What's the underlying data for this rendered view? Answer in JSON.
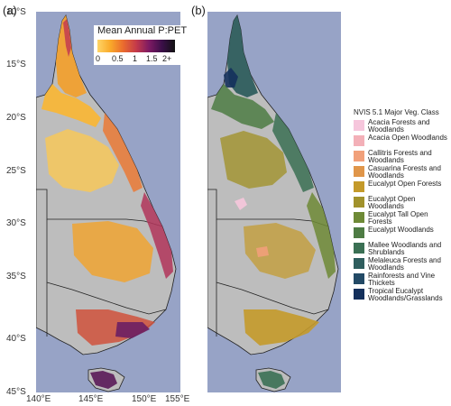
{
  "panel_a": {
    "label": "(a)",
    "legend_title": "Mean Annual P:PET",
    "ticks": [
      "0",
      "0.5",
      "1",
      "1.5",
      "2+"
    ]
  },
  "panel_b": {
    "label": "(b)",
    "legend_title": "NVIS 5.1 Major Veg. Class",
    "classes": [
      {
        "label": "Acacia Forests and Woodlands",
        "color": "#f6c6dc"
      },
      {
        "label": "Acacia Open Woodlands",
        "color": "#f3b0b8"
      },
      {
        "label": "Callitris Forests and Woodlands",
        "color": "#f1a07a"
      },
      {
        "label": "Casuarina Forests and Woodlands",
        "color": "#e0964a"
      },
      {
        "label": "Eucalypt Open Forests",
        "color": "#c49a2a"
      },
      {
        "label": "Eucalypt Open Woodlands",
        "color": "#a1922c"
      },
      {
        "label": "Eucalypt Tall Open Forests",
        "color": "#6e8a36"
      },
      {
        "label": "Eucalypt Woodlands",
        "color": "#4e7c44"
      },
      {
        "label": "Mallee Woodlands and Shrublands",
        "color": "#3b7054"
      },
      {
        "label": "Melaleuca Forests and Woodlands",
        "color": "#2f5e5e"
      },
      {
        "label": "Rainforests and Vine Thickets",
        "color": "#234a66"
      },
      {
        "label": "Tropical Eucalypt Woodlands/Grasslands",
        "color": "#14305c"
      }
    ]
  },
  "axes": {
    "lat_labels": [
      "10°S",
      "15°S",
      "20°S",
      "25°S",
      "30°S",
      "35°S",
      "40°S",
      "45°S"
    ],
    "lon_labels": [
      "140°E",
      "145°E",
      "150°E",
      "155°E"
    ]
  },
  "colors": {
    "ocean": "#97a3c6",
    "land": "#bdbdbd"
  }
}
